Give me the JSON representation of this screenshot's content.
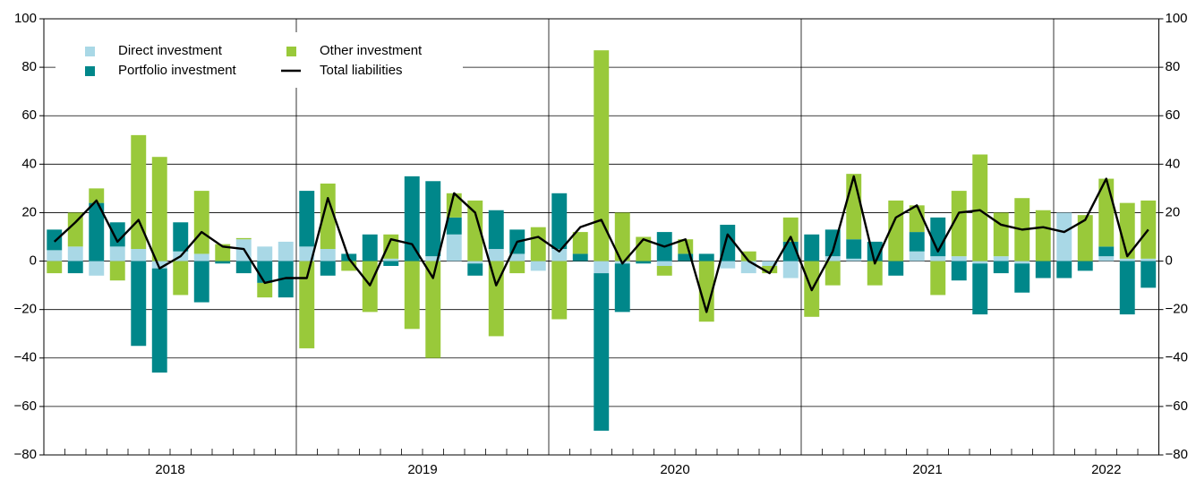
{
  "chart_data": {
    "type": "bar",
    "stacked": true,
    "categories": [
      null,
      null,
      null,
      null,
      null,
      null,
      null,
      null,
      null,
      null,
      null,
      null,
      null,
      null,
      null,
      null,
      null,
      null,
      null,
      null,
      null,
      null,
      null,
      null,
      null,
      null,
      null,
      null,
      null,
      null,
      null,
      null,
      null,
      null,
      null,
      null,
      null,
      null,
      null,
      null,
      null,
      null,
      null,
      null,
      null,
      null,
      null,
      null,
      null,
      null,
      null,
      null,
      null
    ],
    "year_labels": [
      "2018",
      "2019",
      "2020",
      "2021",
      "2022"
    ],
    "series": [
      {
        "name": "Direct investment",
        "color": "#a9d8e6",
        "type": "bar",
        "values": [
          4.5,
          6,
          -6,
          6,
          5,
          -3,
          4,
          3,
          0,
          9,
          6,
          8,
          6,
          5,
          0,
          0,
          1,
          0,
          2,
          11,
          -1,
          5,
          3,
          -4,
          5,
          0,
          -5,
          -1,
          0,
          -2,
          0,
          0,
          -3,
          -5,
          -2,
          -7,
          0,
          2,
          1,
          0,
          0,
          4,
          2,
          2,
          -1,
          2,
          -1,
          0,
          20,
          0,
          2,
          1,
          1
        ]
      },
      {
        "name": "Portfolio investment",
        "color": "#00878a",
        "type": "bar",
        "values": [
          8.5,
          -5,
          24,
          10,
          -35,
          -43,
          12,
          -17,
          -1,
          -5,
          -9,
          -15,
          23,
          -6,
          3,
          11,
          -2,
          35,
          31,
          7,
          -5,
          16,
          10,
          0,
          23,
          3,
          -65,
          -20,
          -1,
          12,
          3,
          3,
          15,
          0,
          0,
          8,
          11,
          11,
          8,
          8,
          -6,
          8,
          16,
          -8,
          -21,
          -5,
          -12,
          -7,
          -7,
          -4,
          4,
          -22,
          -11
        ]
      },
      {
        "name": "Other investment",
        "color": "#99c93a",
        "type": "bar",
        "values": [
          -5,
          14,
          6,
          -8,
          47,
          43,
          -14,
          26,
          7,
          0.5,
          -6,
          0,
          -36,
          27,
          -4,
          -21,
          10,
          -28,
          -40,
          10,
          25,
          -31,
          -5,
          14,
          -24,
          9,
          87,
          20,
          10,
          -4,
          6,
          -25,
          0,
          4,
          -3,
          10,
          -23,
          -10,
          27,
          -10,
          25,
          11,
          -14,
          27,
          44,
          18,
          26,
          21,
          0,
          19,
          28,
          23,
          24
        ]
      },
      {
        "name": "Total liabilities",
        "color": "#000000",
        "type": "line",
        "values": [
          8,
          16,
          25,
          8,
          17,
          -3,
          2,
          12,
          6,
          5,
          -9,
          -7,
          -7,
          26,
          1,
          -10,
          9,
          7,
          -7,
          28,
          20,
          -10,
          8,
          10,
          4,
          14,
          17,
          -1,
          9,
          6,
          9,
          -21,
          11,
          0,
          -5,
          10,
          -12,
          4,
          35,
          -1,
          18,
          23,
          4,
          20,
          21,
          15,
          13,
          14,
          12,
          17,
          34,
          2,
          13
        ]
      }
    ],
    "ylim": [
      -80,
      100
    ],
    "yticks": [
      100,
      80,
      60,
      40,
      20,
      0,
      {
        "value": -20,
        "label": "−20"
      },
      {
        "value": -40,
        "label": "−40"
      },
      {
        "value": -60,
        "label": "−60"
      },
      {
        "value": -80,
        "label": "−80"
      }
    ],
    "grid": true
  }
}
